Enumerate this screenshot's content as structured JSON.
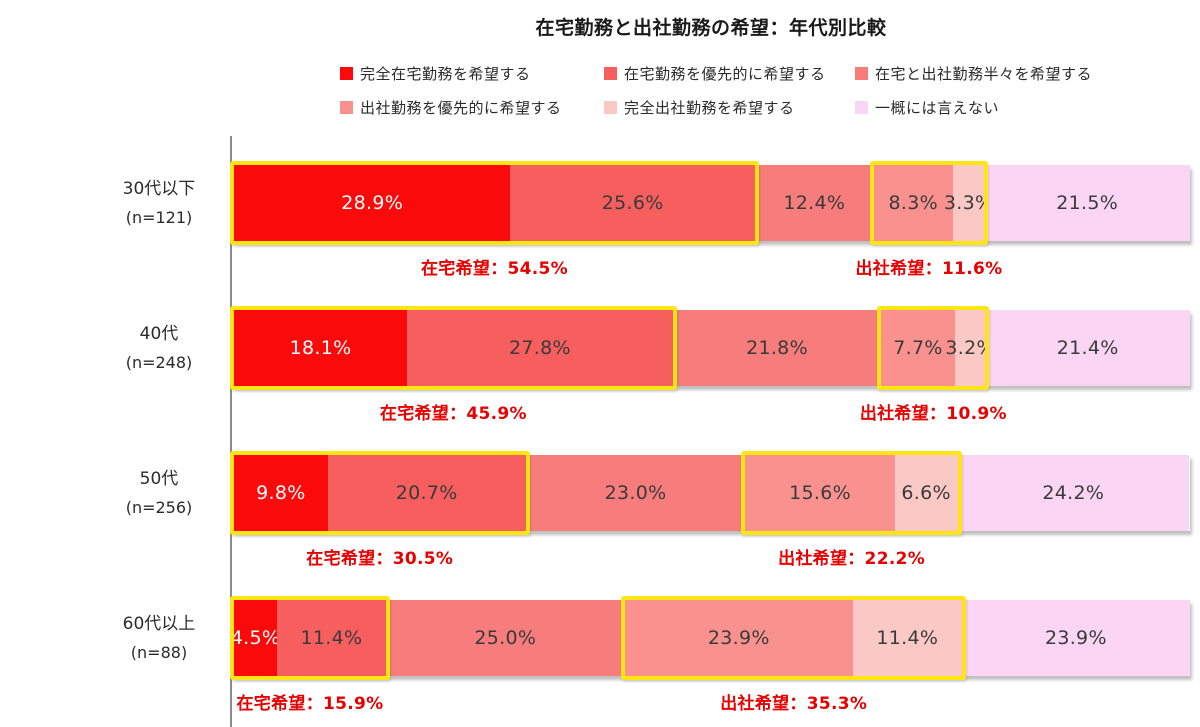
{
  "title": "在宅勤務と出社勤務の希望：年代別比較",
  "colors": {
    "highlight_box": "#FFE612",
    "annotation_text": "#E60000",
    "axis_line": "#8C8C8C",
    "segment_label_dark": "#3A3A3A",
    "segment_label_light": "#FFFFFF"
  },
  "chart_data": {
    "type": "bar",
    "stacked": true,
    "orientation": "horizontal",
    "title": "在宅勤務と出社勤務の希望：年代別比較",
    "xlim": [
      0,
      100
    ],
    "grid": false,
    "legend_position": "top",
    "value_suffix": "%",
    "categories": [
      "30代以下",
      "40代",
      "50代",
      "60代以上"
    ],
    "sample_sizes": [
      "(n=121)",
      "(n=248)",
      "(n=256)",
      "(n=88)"
    ],
    "series": [
      {
        "name": "完全在宅勤務を希望する",
        "color": "#FA0A0A",
        "text_color": "#FFFFFF",
        "values": [
          28.9,
          18.1,
          9.8,
          4.5
        ]
      },
      {
        "name": "在宅勤務を優先的に希望する",
        "color": "#F75E5E",
        "text_color": "#3A3A3A",
        "values": [
          25.6,
          27.8,
          20.7,
          11.4
        ]
      },
      {
        "name": "在宅と出社勤務半々を希望する",
        "color": "#F77C7C",
        "text_color": "#3A3A3A",
        "values": [
          12.4,
          21.8,
          23.0,
          25.0
        ]
      },
      {
        "name": "出社勤務を優先的に希望する",
        "color": "#F9928F",
        "text_color": "#3A3A3A",
        "values": [
          8.3,
          7.7,
          15.6,
          23.9
        ]
      },
      {
        "name": "完全出社勤務を希望する",
        "color": "#FBC9C5",
        "text_color": "#3A3A3A",
        "values": [
          3.3,
          3.2,
          6.6,
          11.4
        ]
      },
      {
        "name": "一概には言えない",
        "color": "#FAD5F4",
        "text_color": "#3A3A3A",
        "values": [
          21.5,
          21.4,
          24.2,
          23.9
        ]
      }
    ],
    "highlights": {
      "home": {
        "series_span": [
          0,
          1
        ],
        "label_prefix": "在宅希望："
      },
      "office": {
        "series_span": [
          3,
          4
        ],
        "label_prefix": "出社希望："
      }
    },
    "row_annotations": [
      {
        "home": "在宅希望：54.5%",
        "office": "出社希望：11.6%"
      },
      {
        "home": "在宅希望：45.9%",
        "office": "出社希望：10.9%"
      },
      {
        "home": "在宅希望：30.5%",
        "office": "出社希望：22.2%"
      },
      {
        "home": "在宅希望：15.9%",
        "office": "出社希望：35.3%"
      }
    ]
  }
}
